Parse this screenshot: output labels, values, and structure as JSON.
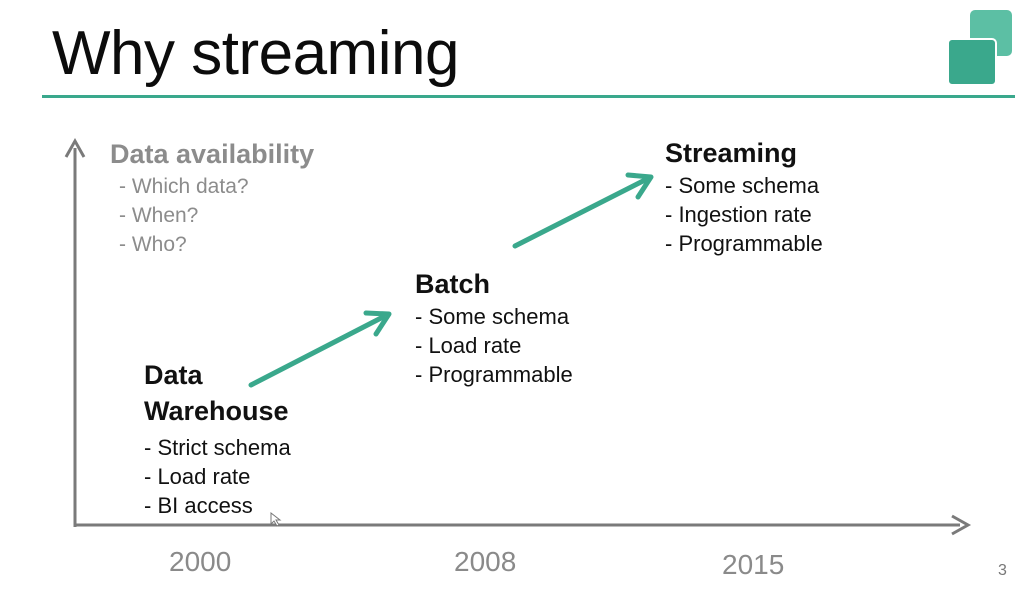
{
  "slide": {
    "title": "Why streaming",
    "page_number": "3",
    "accent_color": "#3aa88c",
    "logo_colors": [
      "#3aa88c",
      "#5cbfa4"
    ]
  },
  "y_axis_label": {
    "heading": "Data availability",
    "items": [
      "- Which data?",
      "- When?",
      "- Who?"
    ]
  },
  "stages": [
    {
      "heading_lines": [
        "Data",
        "Warehouse"
      ],
      "items": [
        "- Strict schema",
        "- Load rate",
        "- BI access"
      ]
    },
    {
      "heading_lines": [
        "Batch"
      ],
      "items": [
        "- Some schema",
        "- Load rate",
        "- Programmable"
      ]
    },
    {
      "heading_lines": [
        "Streaming"
      ],
      "items": [
        "- Some schema",
        "- Ingestion rate",
        "- Programmable"
      ]
    }
  ],
  "x_axis": {
    "years": [
      "2000",
      "2008",
      "2015"
    ]
  }
}
